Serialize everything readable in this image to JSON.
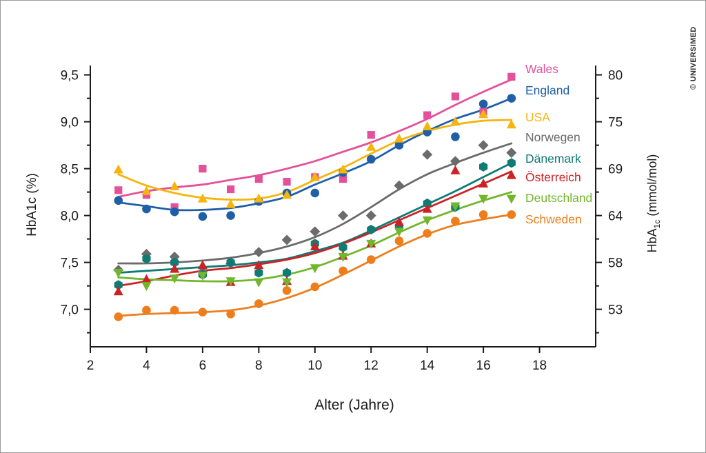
{
  "copyright": "© UNIVERSIMED",
  "chart_data": {
    "type": "scatter",
    "xlabel": "Alter (Jahre)",
    "ylabel": "HbA1c (%)",
    "y2label": {
      "base": "HbA",
      "sub": "1c",
      "rest": " (mmol/mol)"
    },
    "xlim": [
      2,
      20
    ],
    "ylim": [
      6.6,
      9.6
    ],
    "x_ticks": [
      2,
      4,
      6,
      8,
      10,
      12,
      14,
      16,
      18
    ],
    "y_ticks": [
      7.0,
      7.5,
      8.0,
      8.5,
      9.0,
      9.5
    ],
    "y_tick_labels": [
      "7,0",
      "7,5",
      "8,0",
      "8,5",
      "9,0",
      "9,5"
    ],
    "y2_ticks": [
      7.0,
      7.5,
      8.0,
      8.5,
      9.0,
      9.5
    ],
    "y2_tick_labels": [
      "53",
      "58",
      "64",
      "69",
      "75",
      "80"
    ],
    "grid": false,
    "legend": "right-of-series-ends",
    "series": [
      {
        "name": "Wales",
        "color": "#e4509a",
        "marker": "square",
        "x": [
          3,
          4,
          5,
          6,
          7,
          8,
          9,
          10,
          11,
          12,
          13,
          14,
          15,
          16,
          17
        ],
        "y": [
          8.27,
          8.22,
          8.09,
          8.5,
          8.28,
          8.39,
          8.36,
          8.41,
          8.39,
          8.86,
          8.76,
          9.07,
          9.27,
          9.11,
          9.48
        ],
        "fit": [
          8.2,
          8.26,
          8.3,
          8.33,
          8.38,
          8.43,
          8.5,
          8.58,
          8.68,
          8.78,
          8.9,
          9.03,
          9.18,
          9.32,
          9.45
        ]
      },
      {
        "name": "England",
        "color": "#1f5fa8",
        "marker": "circle",
        "x": [
          3,
          4,
          5,
          6,
          7,
          8,
          9,
          10,
          11,
          12,
          13,
          14,
          15,
          16,
          17
        ],
        "y": [
          8.16,
          8.07,
          8.04,
          7.99,
          8.0,
          8.15,
          8.24,
          8.24,
          8.46,
          8.6,
          8.75,
          8.89,
          8.84,
          9.19,
          9.25
        ],
        "fit": [
          8.14,
          8.1,
          8.06,
          8.06,
          8.08,
          8.13,
          8.2,
          8.33,
          8.45,
          8.58,
          8.75,
          8.9,
          9.03,
          9.13,
          9.25
        ]
      },
      {
        "name": "USA",
        "color": "#f5b50e",
        "marker": "triangle-up",
        "x": [
          3,
          4,
          5,
          6,
          7,
          8,
          9,
          10,
          11,
          12,
          13,
          14,
          15,
          16,
          17
        ],
        "y": [
          8.49,
          8.26,
          8.31,
          8.18,
          8.12,
          8.18,
          8.22,
          8.41,
          8.49,
          8.73,
          8.82,
          8.95,
          9.0,
          9.08,
          8.97
        ],
        "fit": [
          8.44,
          8.32,
          8.24,
          8.19,
          8.17,
          8.18,
          8.25,
          8.38,
          8.51,
          8.66,
          8.8,
          8.9,
          8.97,
          9.01,
          9.02
        ]
      },
      {
        "name": "Norwegen",
        "color": "#6b6b6b",
        "marker": "diamond",
        "x": [
          3,
          4,
          5,
          6,
          7,
          8,
          9,
          10,
          11,
          12,
          13,
          14,
          15,
          16,
          17
        ],
        "y": [
          7.42,
          7.59,
          7.56,
          7.4,
          7.49,
          7.61,
          7.74,
          7.83,
          8.0,
          8.0,
          8.32,
          8.65,
          8.58,
          8.75,
          8.67
        ],
        "fit": [
          7.49,
          7.49,
          7.5,
          7.52,
          7.55,
          7.6,
          7.67,
          7.77,
          7.91,
          8.09,
          8.28,
          8.44,
          8.56,
          8.67,
          8.77
        ]
      },
      {
        "name": "Dänemark",
        "color": "#107a74",
        "marker": "hexagon",
        "x": [
          3,
          4,
          5,
          6,
          7,
          8,
          9,
          10,
          11,
          12,
          13,
          14,
          15,
          16,
          17
        ],
        "y": [
          7.26,
          7.54,
          7.5,
          7.37,
          7.5,
          7.39,
          7.39,
          7.7,
          7.66,
          7.85,
          7.88,
          8.13,
          8.09,
          8.52,
          8.56
        ],
        "fit": [
          7.39,
          7.41,
          7.43,
          7.45,
          7.47,
          7.5,
          7.54,
          7.62,
          7.71,
          7.84,
          7.98,
          8.12,
          8.26,
          8.41,
          8.56
        ]
      },
      {
        "name": "Österreich",
        "color": "#cc2226",
        "marker": "triangle-up",
        "x": [
          3,
          4,
          5,
          6,
          7,
          8,
          9,
          10,
          11,
          12,
          13,
          14,
          15,
          16,
          17
        ],
        "y": [
          7.19,
          7.32,
          7.43,
          7.47,
          7.29,
          7.47,
          7.3,
          7.67,
          7.57,
          7.7,
          7.93,
          8.07,
          8.48,
          8.34,
          8.43
        ],
        "fit": [
          7.25,
          7.3,
          7.36,
          7.41,
          7.44,
          7.48,
          7.53,
          7.6,
          7.7,
          7.82,
          7.95,
          8.08,
          8.21,
          8.34,
          8.47
        ]
      },
      {
        "name": "Deutschland",
        "color": "#72b62c",
        "marker": "triangle-down",
        "x": [
          3,
          4,
          5,
          6,
          7,
          8,
          9,
          10,
          11,
          12,
          13,
          14,
          15,
          16,
          17
        ],
        "y": [
          7.39,
          7.25,
          7.33,
          7.36,
          7.3,
          7.29,
          7.29,
          7.44,
          7.56,
          7.7,
          7.83,
          7.95,
          8.1,
          8.18,
          8.18
        ],
        "fit": [
          7.34,
          7.32,
          7.31,
          7.3,
          7.3,
          7.32,
          7.37,
          7.45,
          7.56,
          7.68,
          7.82,
          7.95,
          8.06,
          8.16,
          8.25
        ]
      },
      {
        "name": "Schweden",
        "color": "#ee7d1c",
        "marker": "circle",
        "x": [
          3,
          4,
          5,
          6,
          7,
          8,
          9,
          10,
          11,
          12,
          13,
          14,
          15,
          16,
          17
        ],
        "y": [
          6.92,
          6.99,
          6.99,
          6.97,
          6.95,
          7.06,
          7.2,
          7.24,
          7.41,
          7.53,
          7.73,
          7.81,
          7.94,
          8.01,
          8.01
        ],
        "fit": [
          6.93,
          6.95,
          6.96,
          6.97,
          6.99,
          7.04,
          7.12,
          7.23,
          7.37,
          7.52,
          7.67,
          7.8,
          7.9,
          7.96,
          8.01
        ]
      }
    ]
  }
}
